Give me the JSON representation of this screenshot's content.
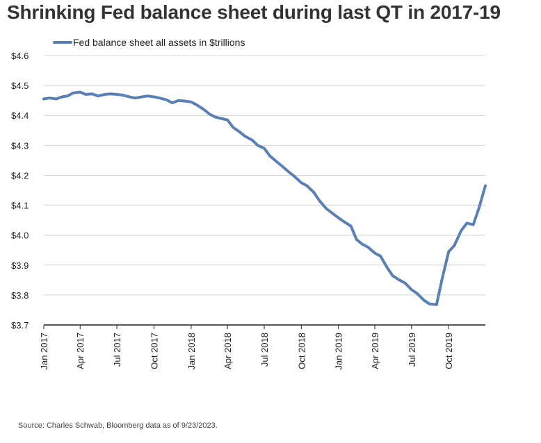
{
  "title": "Shrinking Fed balance sheet during last QT in 2017-19",
  "source": "Source: Charles Schwab, Bloomberg data as of 9/23/2023.",
  "chart_data": {
    "type": "line",
    "title": "Shrinking Fed balance sheet during last QT in 2017-19",
    "xlabel": "",
    "ylabel": "",
    "ylim": [
      3.7,
      4.6
    ],
    "yticks": [
      3.7,
      3.8,
      3.9,
      4.0,
      4.1,
      4.2,
      4.3,
      4.4,
      4.5,
      4.6
    ],
    "ytick_labels": [
      "$3.7",
      "$3.8",
      "$3.9",
      "$4.0",
      "$4.1",
      "$4.2",
      "$4.3",
      "$4.4",
      "$4.5",
      "$4.6"
    ],
    "xlim": [
      "2017-01-01",
      "2019-12-31"
    ],
    "xtick_labels": [
      "Jan 2017",
      "Apr 2017",
      "Jul 2017",
      "Oct 2017",
      "Jan 2018",
      "Apr 2018",
      "Jul 2018",
      "Oct 2018",
      "Jan 2019",
      "Apr 2019",
      "Jul 2019",
      "Oct 2019"
    ],
    "xtick_dates": [
      "2017-01-01",
      "2017-04-01",
      "2017-07-01",
      "2017-10-01",
      "2018-01-01",
      "2018-04-01",
      "2018-07-01",
      "2018-10-01",
      "2019-01-01",
      "2019-04-01",
      "2019-07-01",
      "2019-10-01"
    ],
    "grid": true,
    "legend": "top-left",
    "color": "#5a7fb4",
    "series": [
      {
        "name": "Fed balance sheet all assets in $trillions",
        "x": [
          "2017-01-01",
          "2017-01-15",
          "2017-02-01",
          "2017-02-15",
          "2017-03-01",
          "2017-03-15",
          "2017-04-01",
          "2017-04-15",
          "2017-05-01",
          "2017-05-15",
          "2017-06-01",
          "2017-06-15",
          "2017-07-01",
          "2017-07-15",
          "2017-08-01",
          "2017-08-15",
          "2017-09-01",
          "2017-09-15",
          "2017-10-01",
          "2017-10-15",
          "2017-11-01",
          "2017-11-15",
          "2017-12-01",
          "2017-12-15",
          "2018-01-01",
          "2018-01-15",
          "2018-02-01",
          "2018-02-15",
          "2018-03-01",
          "2018-03-15",
          "2018-04-01",
          "2018-04-15",
          "2018-05-01",
          "2018-05-15",
          "2018-06-01",
          "2018-06-15",
          "2018-07-01",
          "2018-07-15",
          "2018-08-01",
          "2018-08-15",
          "2018-09-01",
          "2018-09-15",
          "2018-10-01",
          "2018-10-15",
          "2018-11-01",
          "2018-11-15",
          "2018-12-01",
          "2018-12-15",
          "2019-01-01",
          "2019-01-15",
          "2019-02-01",
          "2019-02-15",
          "2019-03-01",
          "2019-03-15",
          "2019-04-01",
          "2019-04-15",
          "2019-05-01",
          "2019-05-15",
          "2019-06-01",
          "2019-06-15",
          "2019-07-01",
          "2019-07-15",
          "2019-08-01",
          "2019-08-15",
          "2019-09-01",
          "2019-09-15",
          "2019-10-01",
          "2019-10-15",
          "2019-11-01",
          "2019-11-15",
          "2019-12-01",
          "2019-12-15",
          "2019-12-31"
        ],
        "values": [
          4.455,
          4.458,
          4.455,
          4.462,
          4.465,
          4.475,
          4.478,
          4.47,
          4.472,
          4.465,
          4.47,
          4.472,
          4.47,
          4.468,
          4.462,
          4.458,
          4.462,
          4.465,
          4.462,
          4.458,
          4.452,
          4.442,
          4.45,
          4.448,
          4.445,
          4.435,
          4.42,
          4.405,
          4.395,
          4.39,
          4.385,
          4.36,
          4.345,
          4.33,
          4.318,
          4.3,
          4.29,
          4.265,
          4.245,
          4.23,
          4.21,
          4.195,
          4.175,
          4.165,
          4.143,
          4.115,
          4.09,
          4.075,
          4.058,
          4.045,
          4.03,
          3.985,
          3.97,
          3.96,
          3.94,
          3.93,
          3.893,
          3.865,
          3.85,
          3.84,
          3.818,
          3.805,
          3.782,
          3.77,
          3.768,
          3.855,
          3.945,
          3.965,
          4.015,
          4.04,
          4.035,
          4.09,
          4.165
        ]
      }
    ]
  }
}
